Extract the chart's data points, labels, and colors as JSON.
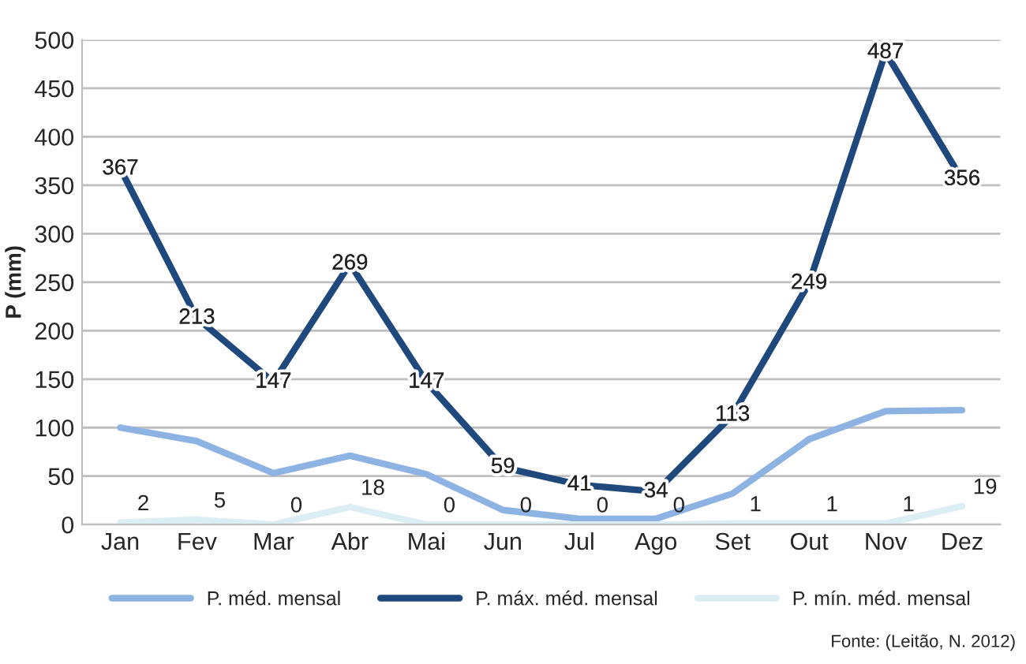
{
  "chart_data": {
    "type": "line",
    "ylabel": "P (mm)",
    "categories": [
      "Jan",
      "Fev",
      "Mar",
      "Abr",
      "Mai",
      "Jun",
      "Jul",
      "Ago",
      "Set",
      "Out",
      "Nov",
      "Dez"
    ],
    "series": [
      {
        "name": "P. méd. mensal",
        "color": "#8db3e2",
        "values": [
          100,
          86,
          53,
          71,
          52,
          15,
          6,
          6,
          32,
          88,
          117,
          118
        ]
      },
      {
        "name": "P. máx. méd. mensal",
        "color": "#1f497d",
        "values": [
          367,
          213,
          147,
          269,
          147,
          59,
          41,
          34,
          113,
          249,
          487,
          356
        ],
        "value_labels": [
          "367",
          "213",
          "147",
          "269",
          "147",
          "59",
          "41",
          "34",
          "113",
          "249",
          "487",
          "356"
        ]
      },
      {
        "name": "P. mín. méd. mensal",
        "color": "#dbeef4",
        "values": [
          2,
          5,
          0,
          18,
          0,
          0,
          0,
          0,
          1,
          1,
          1,
          19
        ],
        "value_labels": [
          "2",
          "5",
          "0",
          "18",
          "0",
          "0",
          "0",
          "0",
          "1",
          "1",
          "1",
          "19"
        ]
      }
    ],
    "ylim": [
      0,
      500
    ],
    "yticks": [
      0,
      50,
      100,
      150,
      200,
      250,
      300,
      350,
      400,
      450,
      500
    ],
    "grid": "y",
    "legend": "bottom",
    "marker": "none",
    "line_style": "solid",
    "annotations": [
      "Fonte: (Leitão, N. 2012)"
    ]
  }
}
